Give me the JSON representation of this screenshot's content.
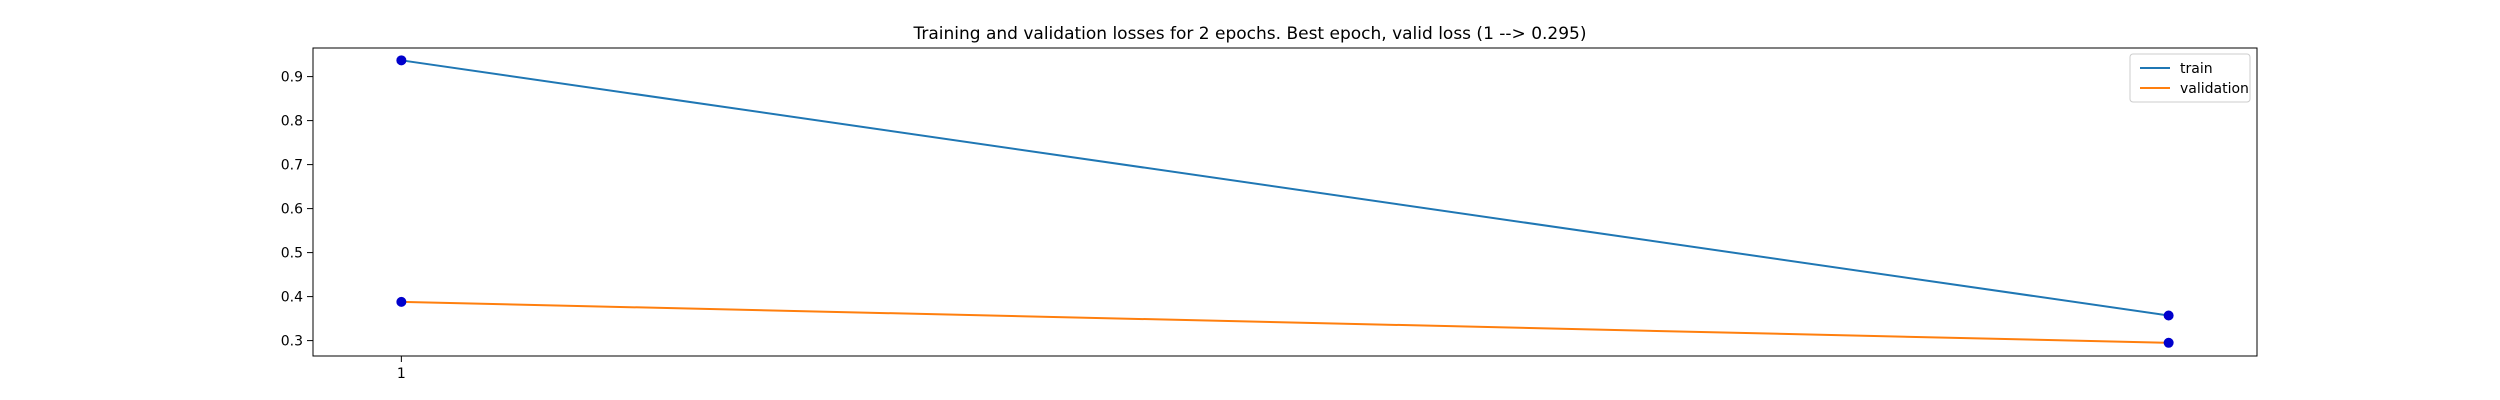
{
  "chart_data": {
    "type": "line",
    "title": "Training and validation losses for 2 epochs. Best epoch, valid loss (1 --> 0.295)",
    "xlabel": "",
    "ylabel": "",
    "x": [
      1,
      2
    ],
    "x_ticks": [
      1
    ],
    "x_tick_labels": [
      "1"
    ],
    "xlim": [
      0.95,
      2.05
    ],
    "ylim": [
      0.265,
      0.965
    ],
    "y_ticks": [
      0.3,
      0.4,
      0.5,
      0.6,
      0.7,
      0.8,
      0.9
    ],
    "y_tick_labels": [
      "0.3",
      "0.4",
      "0.5",
      "0.6",
      "0.7",
      "0.8",
      "0.9"
    ],
    "grid": false,
    "legend_position": "top-right",
    "marker_color": "#0000cc",
    "series": [
      {
        "name": "train",
        "color": "#1f77b4",
        "values": [
          0.937,
          0.357
        ]
      },
      {
        "name": "validation",
        "color": "#ff7f0e",
        "values": [
          0.388,
          0.295
        ]
      }
    ]
  }
}
